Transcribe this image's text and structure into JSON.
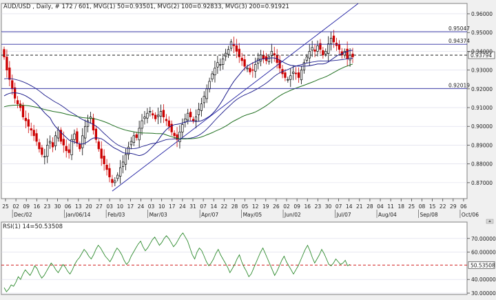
{
  "header": {
    "title": "AUD/USD , Daily, # 172 / 601, MVG(1) 50=0.93501, MVG(2) 100=0.92833, MVG(3) 200=0.91921"
  },
  "colors": {
    "background": "#ffffff",
    "frame": "#f0f0f0",
    "grid": "#d8d8e8",
    "axis": "#404040",
    "bull_candle": "#000000",
    "bear_candle": "#cc0000",
    "ma50": "#1a1a8a",
    "ma100": "#1a1a8a",
    "ma200": "#1e6e1e",
    "trendline": "#1a1aa0",
    "hline": "#2a2aa0",
    "current_price_line": "#1a1a1a",
    "rsi_line": "#2e8b2e",
    "rsi_level_line": "#cc0000"
  },
  "chart_data": [
    {
      "type": "candlestick",
      "name": "price",
      "title": "AUD/USD , Daily, # 172 / 601, MVG(1) 50=0.93501, MVG(2) 100=0.92833, MVG(3) 200=0.91921",
      "ylim": [
        0.8615,
        0.9655
      ],
      "y_ticks": [
        "0.96000",
        "0.95000",
        "0.94000",
        "0.93000",
        "0.92000",
        "0.91000",
        "0.90000",
        "0.89000",
        "0.88000",
        "0.87000"
      ],
      "y_tick_values": [
        0.96,
        0.95,
        0.94,
        0.93,
        0.92,
        0.91,
        0.9,
        0.89,
        0.88,
        0.87
      ],
      "x_ticks": [
        "25",
        "02",
        "09",
        "16",
        "23",
        "30",
        "06",
        "13",
        "20",
        "27",
        "03",
        "10",
        "17",
        "24",
        "03",
        "10",
        "17",
        "24",
        "31",
        "07",
        "14",
        "22",
        "28",
        "05",
        "12",
        "19",
        "26",
        "02",
        "09",
        "16",
        "23",
        "30",
        "07",
        "14",
        "21",
        "28",
        "04",
        "11",
        "18",
        "25",
        "08",
        "15",
        "22",
        "29",
        "06"
      ],
      "x_month_labels": [
        "Dec/02",
        "Jan/06/14",
        "Feb/03",
        "Mar/03",
        "Apr/07",
        "May/05",
        "Jun/02",
        "Jul/07",
        "Aug/04",
        "Sep/08",
        "Oct/06"
      ],
      "horizontal_levels": [
        {
          "label": "0.95047",
          "value": 0.95047
        },
        {
          "label": "0.94374",
          "value": 0.94374
        },
        {
          "label": "0.92019",
          "value": 0.92019
        }
      ],
      "current_price": {
        "label": "0.93794",
        "value": 0.93794
      },
      "closes": [
        0.937,
        0.93,
        0.925,
        0.92,
        0.915,
        0.912,
        0.91,
        0.905,
        0.903,
        0.9,
        0.898,
        0.895,
        0.892,
        0.888,
        0.885,
        0.884,
        0.89,
        0.892,
        0.889,
        0.895,
        0.898,
        0.892,
        0.89,
        0.887,
        0.886,
        0.893,
        0.896,
        0.891,
        0.888,
        0.895,
        0.9,
        0.903,
        0.905,
        0.898,
        0.893,
        0.888,
        0.883,
        0.88,
        0.877,
        0.873,
        0.87,
        0.871,
        0.874,
        0.878,
        0.881,
        0.885,
        0.889,
        0.892,
        0.895,
        0.894,
        0.899,
        0.903,
        0.905,
        0.907,
        0.908,
        0.906,
        0.904,
        0.906,
        0.908,
        0.905,
        0.903,
        0.9,
        0.897,
        0.895,
        0.893,
        0.897,
        0.901,
        0.904,
        0.907,
        0.905,
        0.903,
        0.905,
        0.909,
        0.912,
        0.916,
        0.92,
        0.924,
        0.928,
        0.931,
        0.934,
        0.933,
        0.936,
        0.939,
        0.941,
        0.945,
        0.943,
        0.94,
        0.937,
        0.935,
        0.932,
        0.931,
        0.929,
        0.93,
        0.933,
        0.936,
        0.938,
        0.936,
        0.935,
        0.937,
        0.94,
        0.938,
        0.934,
        0.931,
        0.928,
        0.926,
        0.925,
        0.927,
        0.929,
        0.928,
        0.926,
        0.93,
        0.934,
        0.937,
        0.94,
        0.942,
        0.94,
        0.943,
        0.941,
        0.938,
        0.94,
        0.944,
        0.947,
        0.945,
        0.943,
        0.941,
        0.938,
        0.94,
        0.936,
        0.938,
        0.937
      ],
      "ma_series": [
        {
          "name": "MVG(1) 50",
          "value": 0.93501
        },
        {
          "name": "MVG(2) 100",
          "value": 0.92833
        },
        {
          "name": "MVG(3) 200",
          "value": 0.91921
        }
      ]
    },
    {
      "type": "line",
      "name": "RSI",
      "title": "RSI(1) 14=50.53508",
      "ylim": [
        29,
        82
      ],
      "y_ticks": [
        "70.00000",
        "60.00000",
        "40.00000",
        "30.00000"
      ],
      "y_tick_values": [
        70,
        60,
        40,
        30
      ],
      "current_value": {
        "label": "50.53508",
        "value": 50.53508
      },
      "values": [
        34,
        31,
        33,
        36,
        35,
        38,
        42,
        40,
        44,
        47,
        45,
        43,
        46,
        50,
        48,
        44,
        41,
        43,
        46,
        49,
        52,
        50,
        47,
        45,
        48,
        51,
        49,
        46,
        44,
        47,
        51,
        54,
        56,
        59,
        62,
        60,
        57,
        55,
        58,
        62,
        65,
        63,
        60,
        57,
        55,
        53,
        56,
        60,
        63,
        61,
        58,
        54,
        51,
        53,
        57,
        60,
        63,
        66,
        68,
        64,
        61,
        63,
        66,
        69,
        71,
        68,
        65,
        67,
        70,
        72,
        70,
        67,
        64,
        66,
        69,
        72,
        74,
        71,
        68,
        63,
        58,
        55,
        60,
        63,
        61,
        57,
        53,
        50,
        52,
        55,
        59,
        62,
        58,
        55,
        52,
        49,
        45,
        48,
        51,
        55,
        58,
        53,
        49,
        46,
        42,
        44,
        48,
        52,
        56,
        60,
        63,
        59,
        55,
        51,
        47,
        43,
        46,
        50,
        54,
        57,
        53,
        50,
        47,
        44,
        47,
        50,
        54,
        58,
        62,
        65,
        61,
        56,
        52,
        55,
        58,
        62,
        59,
        55,
        51,
        50,
        52,
        55,
        53,
        51,
        52,
        54,
        50,
        51
      ]
    }
  ]
}
